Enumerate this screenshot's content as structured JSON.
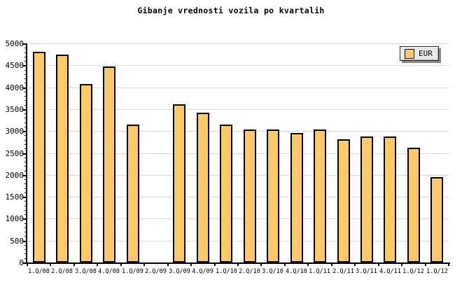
{
  "chart": {
    "title": "Gibanje vrednosti vozila po kvartalih"
  },
  "legend": {
    "label": "EUR",
    "swatch_color": "#FFC966",
    "background": "#E9E9E9",
    "position": "top-right"
  },
  "colors": {
    "background": "#FFFFFF",
    "bar_fill": "#FFC966",
    "bar_border": "#000000",
    "gridline": "#D9D9D9",
    "axis": "#000000",
    "text": "#000000",
    "legend_shadow": "#8A8A8A"
  },
  "chart_data": {
    "type": "bar",
    "title": "Gibanje vrednosti vozila po kvartalih",
    "categories": [
      "1.Q/08",
      "2.Q/08",
      "3.Q/08",
      "4.Q/08",
      "1.Q/09",
      "2.Q/09",
      "3.Q/09",
      "4.Q/09",
      "1.Q/10",
      "2.Q/10",
      "3.Q/10",
      "4.Q/10",
      "1.Q/11",
      "2.Q/11",
      "3.Q/11",
      "4.Q/11",
      "1.Q/12",
      "1.Q/12"
    ],
    "series": [
      {
        "name": "EUR",
        "values": [
          4810,
          4740,
          4080,
          4470,
          3150,
          null,
          3610,
          3420,
          3150,
          3030,
          3040,
          2950,
          3030,
          2810,
          2880,
          2880,
          2620,
          1950
        ]
      }
    ],
    "xlabel": "",
    "ylabel": "",
    "ylim": [
      0,
      5000
    ],
    "y_major_step": 500,
    "y_minor_step": 100,
    "y_tick_labels": [
      "0",
      "500",
      "1000",
      "1500",
      "2000",
      "2500",
      "3000",
      "3500",
      "4000",
      "4500",
      "5000"
    ],
    "grid": "horizontal-major",
    "legend_position": "top-right",
    "bar_color": "#FFC966",
    "missing_categories": [
      "2.Q/09"
    ]
  }
}
